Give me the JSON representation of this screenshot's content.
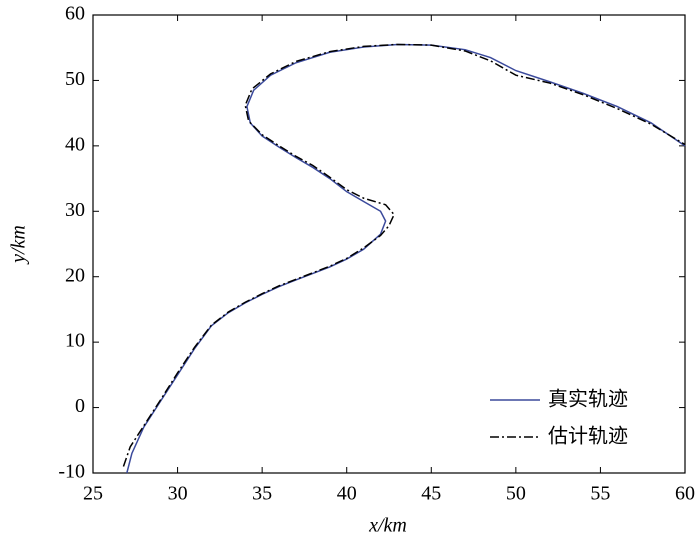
{
  "chart_data": {
    "type": "line",
    "xlabel": "x/km",
    "ylabel": "y/km",
    "xlim": [
      25,
      60
    ],
    "xticks": [
      25,
      30,
      35,
      40,
      45,
      50,
      55,
      60
    ],
    "ylim": [
      -10,
      60
    ],
    "yticks": [
      -10,
      0,
      10,
      20,
      30,
      40,
      50,
      60
    ],
    "legend": "lower right",
    "series": [
      {
        "name": "真实轨迹",
        "color": "#3b4a9c",
        "dash": "solid",
        "x": [
          27,
          27.3,
          28,
          29,
          30,
          31,
          32,
          33,
          34,
          35,
          36,
          37,
          38,
          39,
          40,
          41,
          42,
          42.3,
          42,
          41,
          40,
          39,
          38,
          37,
          36,
          35,
          34.3,
          34.1,
          34.5,
          35.5,
          37,
          39,
          41,
          43,
          45,
          47,
          48.5,
          50,
          52,
          54,
          56,
          58,
          60
        ],
        "y": [
          -10,
          -7,
          -3,
          1,
          5,
          9,
          12.5,
          14.5,
          16,
          17.3,
          18.5,
          19.5,
          20.5,
          21.5,
          22.7,
          24.2,
          26.5,
          28.5,
          30,
          31.5,
          33,
          35,
          36.7,
          38.2,
          39.8,
          41.5,
          43.5,
          46,
          48.5,
          50.8,
          52.7,
          54.3,
          55.1,
          55.5,
          55.4,
          54.7,
          53.5,
          51.5,
          49.8,
          48,
          46,
          43.5,
          40
        ]
      },
      {
        "name": "估计轨迹",
        "color": "#000000",
        "dash": "dashdot",
        "x": [
          26.8,
          27.2,
          28,
          29,
          30,
          31,
          32,
          33,
          34,
          35,
          36,
          37,
          38,
          39,
          40,
          41,
          42,
          42.5,
          42.8,
          42.3,
          41,
          40,
          39,
          38,
          37,
          36,
          35,
          34.2,
          34,
          34.4,
          35.5,
          37,
          39,
          41,
          43,
          45,
          47,
          48.5,
          50,
          52,
          54,
          56,
          58,
          60
        ],
        "y": [
          -9,
          -6,
          -2.8,
          1.2,
          5.3,
          9.2,
          12.6,
          14.6,
          16.1,
          17.4,
          18.6,
          19.6,
          20.6,
          21.6,
          22.8,
          24.4,
          26.3,
          27.8,
          29.5,
          31,
          32,
          33.3,
          35.2,
          37,
          38.4,
          40,
          41.7,
          43.8,
          46.2,
          48.7,
          51,
          52.9,
          54.4,
          55.2,
          55.5,
          55.4,
          54.5,
          53,
          50.8,
          49.6,
          47.8,
          45.7,
          43.3,
          40.2
        ]
      }
    ]
  }
}
